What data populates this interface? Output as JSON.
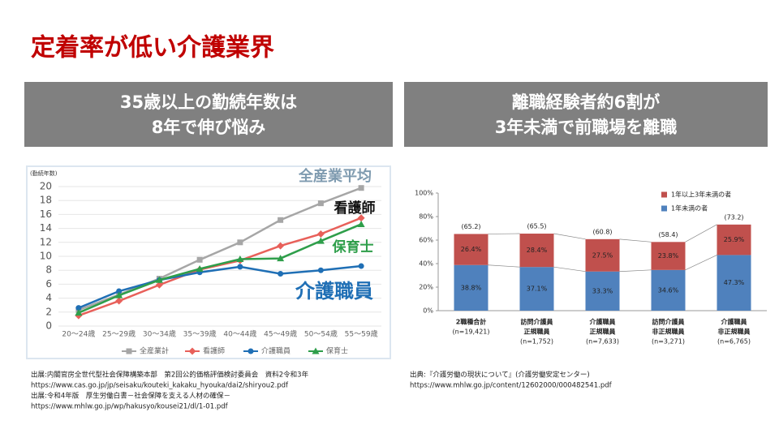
{
  "title": "定着率が低い介護業界",
  "banners": [
    [
      "35歳以上の勤続年数は",
      "8年で伸び悩み"
    ],
    [
      "離職経験者約6割が",
      "3年未満で前職場を離職"
    ]
  ],
  "sources": [
    [
      "出展:内閣官房全世代型社会保障構築本部　第2回公的価格評価検討委員会　資料2令和3年",
      "https://www.cas.go.jp/jp/seisaku/kouteki_kakaku_hyouka/dai2/shiryou2.pdf",
      "出展:令和4年版　厚生労働白書－社会保障を支える人材の確保－",
      "https://www.mhlw.go.jp/wp/hakusyo/kousei21/dl/1-01.pdf"
    ],
    [
      "出典:『介護労働の現状について』(介護労働安定センター)",
      "https://www.mhlw.go.jp/content/12602000/000482541.pdf"
    ]
  ],
  "chart_data": [
    {
      "type": "line",
      "y_label": "(勤続年数)",
      "categories": [
        "20～24歳",
        "25～29歳",
        "30～34歳",
        "35～39歳",
        "40～44歳",
        "45～49歳",
        "50～54歳",
        "55～59歳"
      ],
      "series": [
        {
          "name": "全産業計",
          "color": "#a6a6a6",
          "marker": "square",
          "values": [
            2.3,
            4.5,
            6.8,
            9.5,
            12.0,
            15.2,
            17.6,
            19.8
          ]
        },
        {
          "name": "看護師",
          "color": "#e8605a",
          "marker": "diamond",
          "values": [
            1.5,
            3.6,
            5.9,
            8.1,
            9.4,
            11.5,
            13.2,
            15.5
          ]
        },
        {
          "name": "介護職員",
          "color": "#1f6fb5",
          "marker": "circle",
          "values": [
            2.6,
            5.0,
            6.6,
            7.7,
            8.5,
            7.5,
            8.0,
            8.6
          ]
        },
        {
          "name": "保育士",
          "color": "#2e9e4a",
          "marker": "triangle",
          "values": [
            1.9,
            4.4,
            6.6,
            8.2,
            9.6,
            9.7,
            12.2,
            14.6
          ]
        }
      ],
      "ylim": [
        0,
        20
      ],
      "yticks": [
        0,
        2,
        4,
        6,
        8,
        10,
        12,
        14,
        16,
        18,
        20
      ],
      "grid": true,
      "legend": "bottom",
      "annotations": [
        {
          "text": "全産業平均",
          "color": "#7f9bb0"
        },
        {
          "text": "看護師",
          "color": "#111111"
        },
        {
          "text": "保育士",
          "color": "#2e9e4a"
        },
        {
          "text": "介護職員",
          "color": "#1f6fb5"
        }
      ]
    },
    {
      "type": "stacked_bar",
      "categories": [
        [
          "2職種合計",
          "(n=19,421)"
        ],
        [
          "訪問介護員",
          "正規職員",
          "(n=1,752)"
        ],
        [
          "介護職員",
          "正規職員",
          "(n=7,633)"
        ],
        [
          "訪問介護員",
          "非正規職員",
          "(n=3,271)"
        ],
        [
          "介護職員",
          "非正規職員",
          "(n=6,765)"
        ]
      ],
      "series": [
        {
          "name": "1年未満の者",
          "color": "#4f81bd",
          "values": [
            38.8,
            37.1,
            33.3,
            34.6,
            47.3
          ],
          "value_labels": [
            "38.8%",
            "37.1%",
            "33.3%",
            "34.6%",
            "47.3%"
          ]
        },
        {
          "name": "1年以上3年未満の者",
          "color": "#c0504d",
          "values": [
            26.4,
            28.4,
            27.5,
            23.8,
            25.9
          ],
          "value_labels": [
            "26.4%",
            "28.4%",
            "27.5%",
            "23.8%",
            "25.9%"
          ]
        }
      ],
      "totals": {
        "values": [
          65.2,
          65.5,
          60.8,
          58.4,
          73.2
        ],
        "value_labels": [
          "(65.2)",
          "(65.5)",
          "(60.8)",
          "(58.4)",
          "(73.2)"
        ]
      },
      "ylim": [
        0,
        100
      ],
      "yticks": [
        {
          "value": 0,
          "label": "0%"
        },
        {
          "value": 20,
          "label": "20%"
        },
        {
          "value": 40,
          "label": "40%"
        },
        {
          "value": 60,
          "label": "60%"
        },
        {
          "value": 80,
          "label": "80%"
        },
        {
          "value": 100,
          "label": "100%"
        }
      ],
      "legend": "top-right"
    }
  ]
}
